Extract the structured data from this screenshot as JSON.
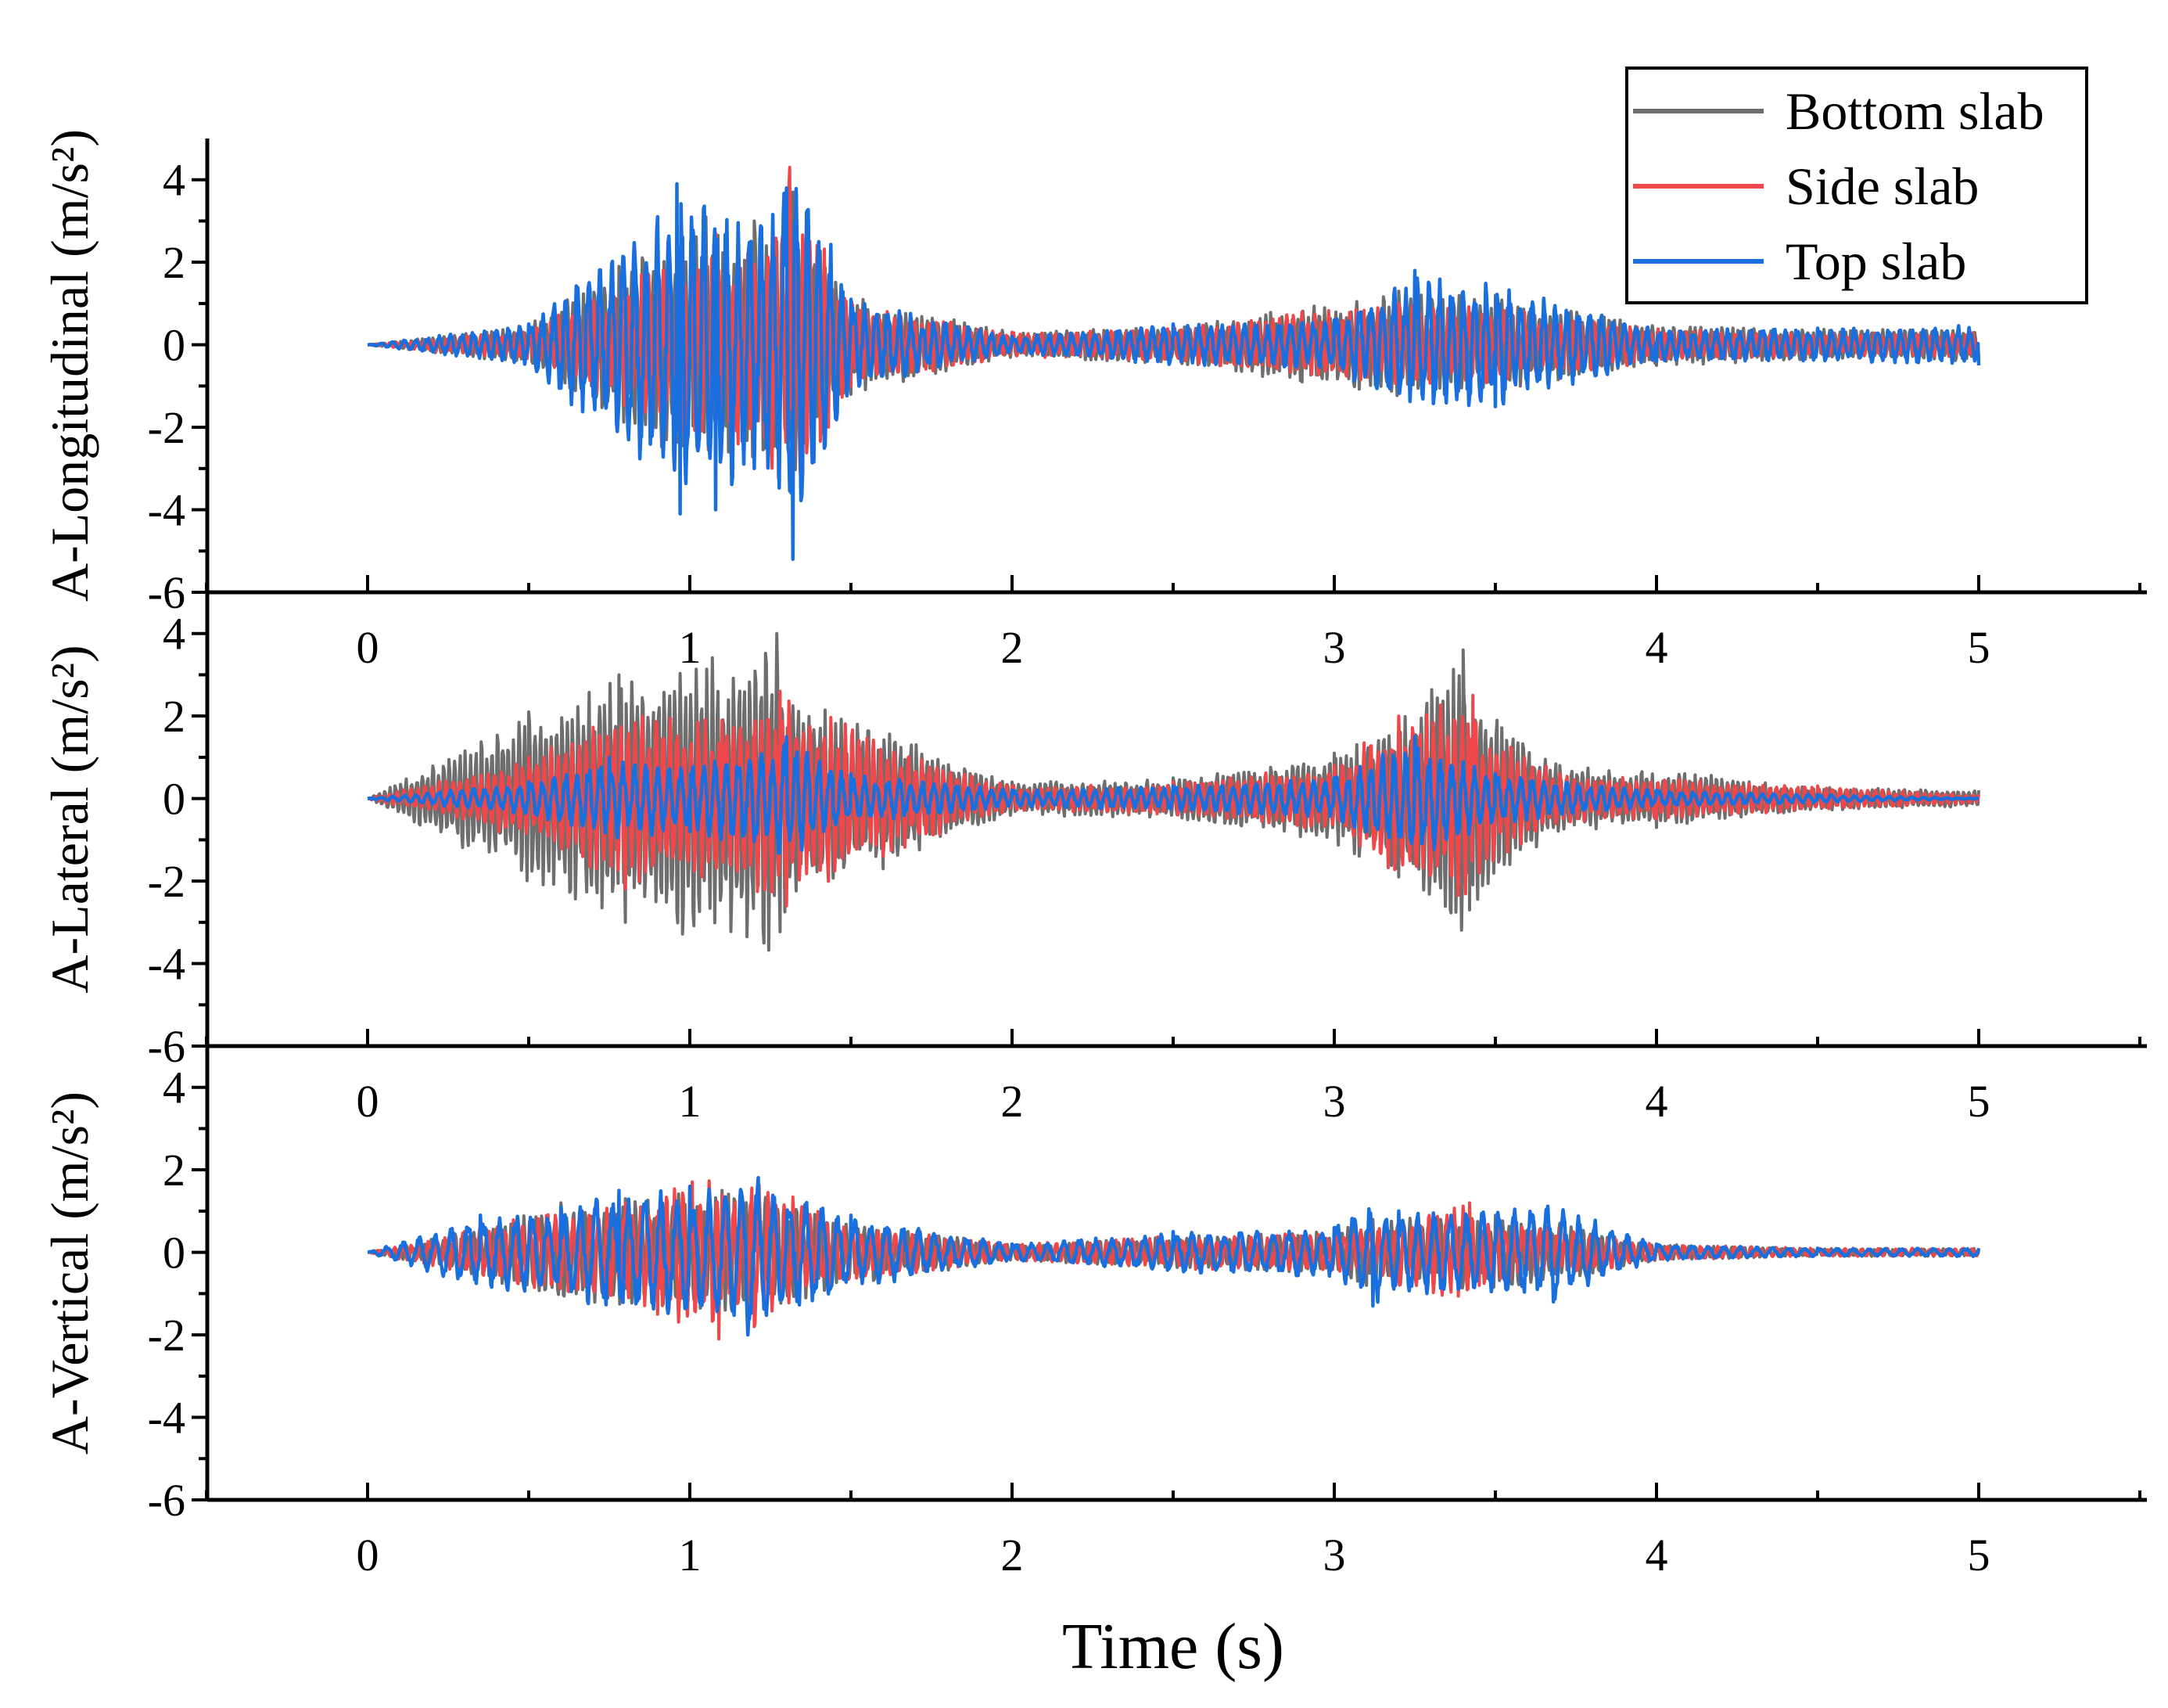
{
  "chart_data": {
    "type": "line",
    "xlabel": "Time (s)",
    "xlim": [
      -0.5,
      5.5
    ],
    "ylim": [
      -6,
      5
    ],
    "x_ticks": [
      0,
      1,
      2,
      3,
      4,
      5
    ],
    "x_tick_labels": [
      "0",
      "1",
      "2",
      "3",
      "4",
      "5"
    ],
    "y_ticks": [
      -6,
      -4,
      -2,
      0,
      2,
      4
    ],
    "y_tick_labels": [
      "-6",
      "-4",
      "-2",
      "0",
      "2",
      "4"
    ],
    "legend": {
      "position": "top-right",
      "entries": [
        "Bottom slab",
        "Side slab",
        "Top slab"
      ]
    },
    "series_colors": {
      "Bottom slab": "#6e6e6e",
      "Side slab": "#f0484a",
      "Top slab": "#1a6fdf"
    },
    "panels": [
      {
        "ylabel": "A-Longitudinal (m/s²)",
        "series": [
          {
            "name": "Bottom slab",
            "x": [
              0,
              0.5,
              0.78,
              1.05,
              1.12,
              1.2,
              1.32,
              1.5,
              2.0,
              2.5,
              2.9,
              3.2,
              3.5,
              4.0,
              4.5,
              5.0
            ],
            "y": [
              0,
              0.5,
              1.9,
              3.1,
              -2.6,
              3.0,
              3.7,
              -1.2,
              0.3,
              0.5,
              -0.9,
              1.3,
              1.2,
              -0.5,
              0.4,
              -0.4
            ]
          },
          {
            "name": "Side slab",
            "x": [
              0,
              0.5,
              0.85,
              1.08,
              1.15,
              1.22,
              1.31,
              1.5,
              2.0,
              2.5,
              2.9,
              3.2,
              3.55,
              4.0,
              4.5,
              5.0
            ],
            "y": [
              0,
              0.4,
              1.7,
              2.7,
              -2.4,
              2.8,
              4.3,
              -1.0,
              0.3,
              0.4,
              0.8,
              1.0,
              0.9,
              -0.4,
              0.3,
              -0.3
            ]
          },
          {
            "name": "Top slab",
            "x": [
              0,
              0.5,
              0.96,
              0.97,
              1.08,
              1.2,
              1.3,
              1.32,
              1.5,
              2.0,
              2.5,
              3.0,
              3.25,
              3.5,
              4.0,
              4.5,
              5.0
            ],
            "y": [
              0,
              0.5,
              3.9,
              -4.1,
              -4.0,
              -3.0,
              3.8,
              -5.2,
              1.1,
              0.2,
              0.5,
              0.6,
              1.8,
              -1.5,
              -0.4,
              0.4,
              -0.5
            ]
          }
        ]
      },
      {
        "ylabel": "A-Lateral (m/s²)",
        "series": [
          {
            "name": "Bottom slab",
            "x": [
              0,
              0.5,
              0.78,
              0.8,
              1.27,
              1.3,
              1.6,
              2.0,
              2.5,
              3.0,
              3.2,
              3.4,
              3.42,
              3.7,
              4.0,
              4.5,
              5.0
            ],
            "y": [
              0,
              2.1,
              3.0,
              -3.0,
              4.0,
              -2.6,
              -1.7,
              0.4,
              0.5,
              1.1,
              -1.9,
              3.6,
              -2.7,
              0.8,
              -0.7,
              0.3,
              0.2
            ]
          },
          {
            "name": "Side slab",
            "x": [
              0,
              0.5,
              0.8,
              1.1,
              1.28,
              1.3,
              1.6,
              2.0,
              2.5,
              3.0,
              3.2,
              3.43,
              3.45,
              3.7,
              4.0,
              4.5,
              5.0
            ],
            "y": [
              0,
              1.0,
              -2.2,
              1.9,
              2.6,
              -2.6,
              -1.4,
              0.3,
              0.4,
              0.8,
              2.0,
              2.5,
              -1.8,
              0.6,
              -0.5,
              0.3,
              0.1
            ]
          },
          {
            "name": "Top slab",
            "x": [
              0,
              0.5,
              0.75,
              1.0,
              1.3,
              1.5,
              2.0,
              2.5,
              3.0,
              3.25,
              3.5,
              4.0,
              4.5,
              5.0
            ],
            "y": [
              0,
              0.4,
              1.0,
              -0.8,
              1.5,
              0.6,
              0.2,
              0.3,
              0.5,
              1.5,
              0.6,
              0.2,
              0.1,
              0.0
            ]
          }
        ]
      },
      {
        "ylabel": "A-Vertical (m/s²)",
        "series": [
          {
            "name": "Bottom slab",
            "x": [
              0,
              0.3,
              0.6,
              0.8,
              0.9,
              1.1,
              1.2,
              1.5,
              2.0,
              2.5,
              3.0,
              3.1,
              3.5,
              3.7,
              4.0,
              4.5,
              5.0
            ],
            "y": [
              0,
              0.5,
              1.2,
              1.3,
              -1.4,
              1.5,
              -1.5,
              0.8,
              0.2,
              0.4,
              0.5,
              -0.8,
              0.9,
              0.7,
              0.2,
              0.1,
              0.1
            ]
          },
          {
            "name": "Side slab",
            "x": [
              0,
              0.3,
              0.6,
              0.8,
              0.9,
              1.09,
              1.1,
              1.2,
              1.5,
              2.0,
              2.5,
              3.0,
              3.42,
              3.45,
              3.7,
              4.0,
              4.5,
              5.0
            ],
            "y": [
              0,
              0.5,
              1.1,
              1.2,
              -1.5,
              -2.1,
              1.4,
              -1.8,
              0.7,
              0.2,
              0.4,
              0.5,
              1.2,
              -0.8,
              0.6,
              0.2,
              0.1,
              0.1
            ]
          },
          {
            "name": "Top slab",
            "x": [
              0,
              0.35,
              0.6,
              0.78,
              1.0,
              1.18,
              1.5,
              2.0,
              2.5,
              3.0,
              3.12,
              3.2,
              3.68,
              4.0,
              4.5,
              5.0
            ],
            "y": [
              0,
              0.9,
              1.1,
              1.5,
              1.6,
              -2.0,
              0.9,
              0.2,
              0.5,
              0.6,
              -1.3,
              1.0,
              -1.2,
              0.2,
              0.1,
              0.1
            ]
          }
        ]
      }
    ]
  }
}
